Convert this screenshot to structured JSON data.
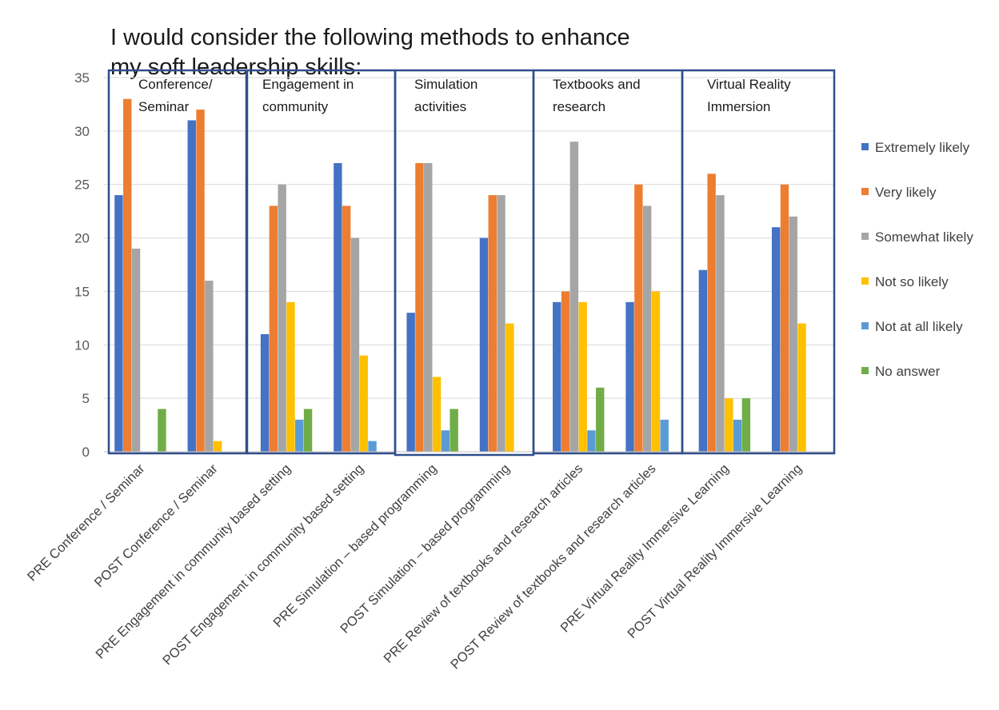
{
  "chart_data": {
    "type": "bar",
    "title_lines": [
      "I would consider the following methods to enhance",
      "my soft leadership skills:"
    ],
    "xlabel": "",
    "ylabel": "",
    "ylim": [
      0,
      35
    ],
    "yticks": [
      0,
      5,
      10,
      15,
      20,
      25,
      30,
      35
    ],
    "grid": true,
    "legend_position": "right",
    "categories": [
      "PRE Conference / Seminar",
      "POST Conference / Seminar",
      "PRE Engagement in community based setting",
      "POST Engagement in community based setting",
      "PRE Simulation – based programming",
      "POST Simulation – based programming",
      "PRE  Review of textbooks and research articles",
      "POST Review of textbooks and research articles",
      "PRE Virtual Reality Immersive Learning",
      "POST Virtual Reality Immersive Learning"
    ],
    "series": [
      {
        "name": "Extremely likely",
        "color": "#4472C4",
        "values": [
          24,
          31,
          11,
          27,
          13,
          20,
          14,
          14,
          17,
          21
        ]
      },
      {
        "name": "Very likely",
        "color": "#ED7D31",
        "values": [
          33,
          32,
          23,
          23,
          27,
          24,
          15,
          25,
          26,
          25
        ]
      },
      {
        "name": "Somewhat likely",
        "color": "#A5A5A5",
        "values": [
          19,
          16,
          25,
          20,
          27,
          24,
          29,
          23,
          24,
          22
        ]
      },
      {
        "name": "Not so likely",
        "color": "#FFC000",
        "values": [
          0,
          1,
          14,
          9,
          7,
          12,
          14,
          15,
          5,
          12
        ]
      },
      {
        "name": "Not at all likely",
        "color": "#5B9BD5",
        "values": [
          0,
          0,
          3,
          1,
          2,
          0,
          2,
          3,
          3,
          0
        ]
      },
      {
        "name": "No answer",
        "color": "#70AD47",
        "values": [
          4,
          0,
          4,
          0,
          4,
          0,
          6,
          0,
          5,
          0
        ]
      }
    ],
    "group_boxes": [
      {
        "label_lines": [
          "Conference/",
          "Seminar"
        ]
      },
      {
        "label_lines": [
          "Engagement in",
          "community"
        ]
      },
      {
        "label_lines": [
          "Simulation",
          "activities"
        ]
      },
      {
        "label_lines": [
          "Textbooks and",
          "research"
        ]
      },
      {
        "label_lines": [
          "Virtual Reality",
          "Immersion"
        ]
      }
    ],
    "box_color": "#2F4E8C"
  }
}
